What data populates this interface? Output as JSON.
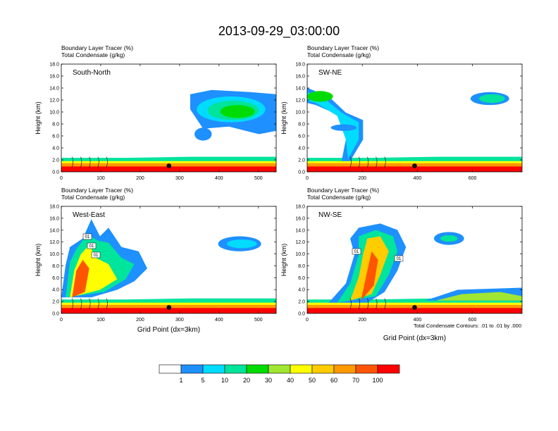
{
  "page_title": "2013-09-29_03:00:00",
  "variable_label_1": "Boundary Layer Tracer   (%)",
  "variable_label_2": "Total Condensate   (g/kg)",
  "contour_note": "Total Condensate Contours: .01 to .01 by .000",
  "colors": {
    "levels": [
      "#ffffff",
      "#1e90ff",
      "#00dcff",
      "#00e49b",
      "#00dc00",
      "#a0e632",
      "#ffff00",
      "#ffcc00",
      "#ff9900",
      "#ff5500",
      "#ff0000"
    ],
    "marker": "#111111"
  },
  "colorbar": {
    "labels": [
      "1",
      "5",
      "10",
      "20",
      "30",
      "40",
      "50",
      "60",
      "70",
      "100"
    ]
  },
  "chart_data": [
    {
      "type": "heatmap",
      "panel": "South-North",
      "title_lines": [
        "Boundary Layer Tracer   (%)",
        "Total Condensate   (g/kg)"
      ],
      "ylabel": "Height (km)",
      "xlabel": "",
      "xlim": [
        0,
        545
      ],
      "ylim": [
        0,
        18
      ],
      "xticks": [
        0,
        100,
        200,
        300,
        400,
        500
      ],
      "yticks": [
        0,
        2,
        4,
        6,
        8,
        10,
        12,
        14,
        16,
        18
      ],
      "ytick_labels": [
        "0.0",
        "2.0",
        "4.0",
        "6.0",
        "8.0",
        "10.0",
        "12.0",
        "14.0",
        "16.0",
        "18.0"
      ],
      "marker_x": 273,
      "contour_labels": []
    },
    {
      "type": "heatmap",
      "panel": "SW-NE",
      "title_lines": [
        "Boundary Layer Tracer   (%)",
        "Total Condensate   (g/kg)"
      ],
      "ylabel": "Height (km)",
      "xlabel": "",
      "xlim": [
        0,
        780
      ],
      "ylim": [
        0,
        18
      ],
      "xticks": [
        0,
        200,
        400,
        600
      ],
      "yticks": [
        0,
        2,
        4,
        6,
        8,
        10,
        12,
        14,
        16,
        18
      ],
      "ytick_labels": [
        "0.0",
        "2.0",
        "4.0",
        "6.0",
        "8.0",
        "10.0",
        "12.0",
        "14.0",
        "16.0",
        "18.0"
      ],
      "marker_x": 390,
      "contour_labels": []
    },
    {
      "type": "heatmap",
      "panel": "West-East",
      "title_lines": [
        "Boundary Layer Tracer   (%)",
        "Total Condensate   (g/kg)"
      ],
      "ylabel": "Height (km)",
      "xlabel": "Grid Point (dx=3km)",
      "xlim": [
        0,
        545
      ],
      "ylim": [
        0,
        18
      ],
      "xticks": [
        0,
        100,
        200,
        300,
        400,
        500
      ],
      "yticks": [
        0,
        2,
        4,
        6,
        8,
        10,
        12,
        14,
        16,
        18
      ],
      "ytick_labels": [
        "0.0",
        "2.0",
        "4.0",
        "6.0",
        "8.0",
        "10.0",
        "12.0",
        "14.0",
        "16.0",
        "18.0"
      ],
      "marker_x": 273,
      "contour_labels": [
        "01",
        "01",
        "01"
      ]
    },
    {
      "type": "heatmap",
      "panel": "NW-SE",
      "title_lines": [
        "Boundary Layer Tracer   (%)",
        "Total Condensate   (g/kg)"
      ],
      "ylabel": "Height (km)",
      "xlabel": "Grid Point (dx=3km)",
      "xlim": [
        0,
        780
      ],
      "ylim": [
        0,
        18
      ],
      "xticks": [
        0,
        200,
        400,
        600
      ],
      "yticks": [
        0,
        2,
        4,
        6,
        8,
        10,
        12,
        14,
        16,
        18
      ],
      "ytick_labels": [
        "0.0",
        "2.0",
        "4.0",
        "6.0",
        "8.0",
        "10.0",
        "12.0",
        "14.0",
        "16.0",
        "18.0"
      ],
      "marker_x": 390,
      "contour_labels": [
        "01",
        "01"
      ]
    }
  ]
}
